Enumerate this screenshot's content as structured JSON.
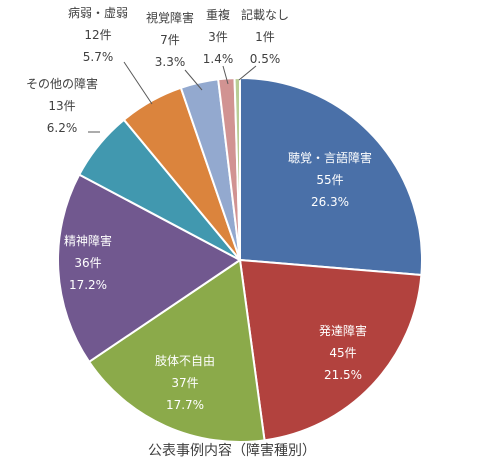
{
  "chart_data": {
    "type": "pie",
    "title": "公表事例内容（障害種別）",
    "unit_suffix": "件",
    "slices": [
      {
        "name": "聴覚・言語障害",
        "count": 55,
        "percent": "26.3%",
        "color": "#4A70A8"
      },
      {
        "name": "発達障害",
        "count": 45,
        "percent": "21.5%",
        "color": "#B2423E"
      },
      {
        "name": "肢体不自由",
        "count": 37,
        "percent": "17.7%",
        "color": "#8BAA4A"
      },
      {
        "name": "精神障害",
        "count": 36,
        "percent": "17.2%",
        "color": "#71588F"
      },
      {
        "name": "その他の障害",
        "count": 13,
        "percent": "6.2%",
        "color": "#4198AF"
      },
      {
        "name": "病弱・虚弱",
        "count": 12,
        "percent": "5.7%",
        "color": "#DB843D"
      },
      {
        "name": "視覚障害",
        "count": 7,
        "percent": "3.3%",
        "color": "#93A9CF"
      },
      {
        "name": "重複",
        "count": 3,
        "percent": "1.4%",
        "color": "#D19392"
      },
      {
        "name": "記載なし",
        "count": 1,
        "percent": "0.5%",
        "color": "#B9CD96"
      }
    ]
  }
}
